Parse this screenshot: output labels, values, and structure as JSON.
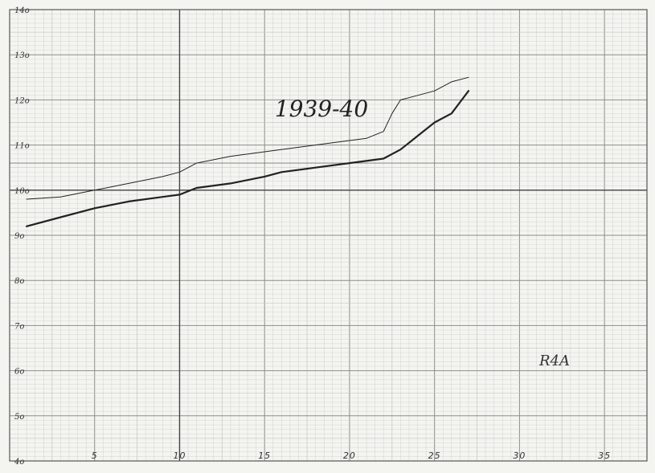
{
  "chart_data": {
    "type": "line",
    "title": "1939-40",
    "annotation": "R4A",
    "xlim": [
      0,
      37.5
    ],
    "ylim": [
      4,
      14
    ],
    "x_ticks": [
      5,
      10,
      15,
      20,
      25,
      30,
      35
    ],
    "x_tick_labels": [
      "5",
      "10",
      "15",
      "20",
      "25",
      "30",
      "35"
    ],
    "y_ticks": [
      4,
      5,
      6,
      7,
      8,
      9,
      10,
      11,
      12,
      13,
      14
    ],
    "y_tick_labels": [
      "4o",
      "5o",
      "6o",
      "7o",
      "8o",
      "9o",
      "10o",
      "11o",
      "12o",
      "13o",
      "14o"
    ],
    "grid": true,
    "colors": {
      "paper": "#f4f4f1",
      "grid_minor": "#c9c9c4",
      "grid_major": "#8d8d88",
      "ink": "#222222"
    },
    "series": [
      {
        "style": "thin",
        "x": [
          1,
          3,
          5,
          7,
          9,
          10,
          11,
          13,
          15,
          17,
          19,
          20,
          21,
          22,
          22.5,
          23,
          24,
          25,
          26,
          27
        ],
        "y": [
          9.8,
          9.85,
          10.0,
          10.15,
          10.3,
          10.4,
          10.6,
          10.75,
          10.85,
          10.95,
          11.05,
          11.1,
          11.15,
          11.3,
          11.7,
          12.0,
          12.1,
          12.2,
          12.4,
          12.5
        ]
      },
      {
        "style": "thick",
        "x": [
          1,
          3,
          5,
          7,
          9,
          10,
          11,
          13,
          15,
          16,
          18,
          20,
          22,
          23,
          24,
          25,
          26,
          27
        ],
        "y": [
          9.2,
          9.4,
          9.6,
          9.75,
          9.85,
          9.9,
          10.05,
          10.15,
          10.3,
          10.4,
          10.5,
          10.6,
          10.7,
          10.9,
          11.2,
          11.5,
          11.7,
          12.2
        ]
      }
    ]
  }
}
